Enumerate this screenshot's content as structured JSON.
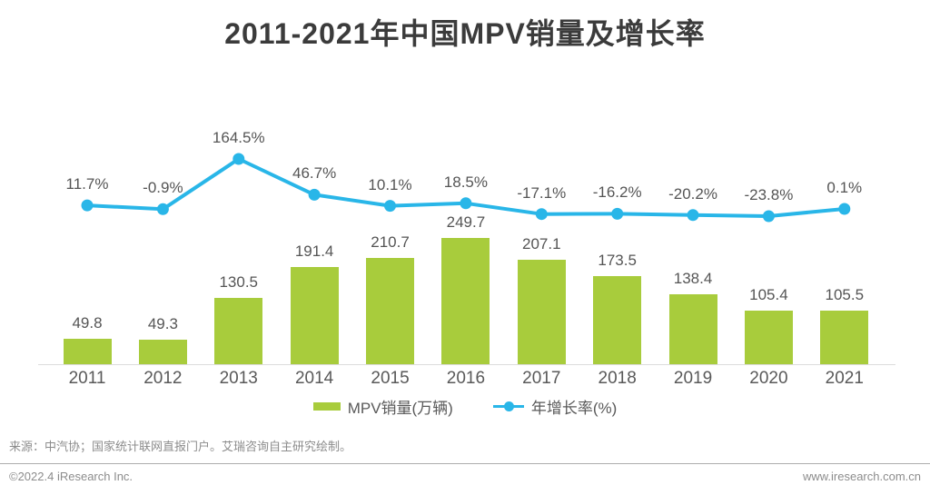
{
  "page": {
    "title": "2011-2021年中国MPV销量及增长率",
    "source_note": "来源：中汽协；国家统计联网直报门户。艾瑞咨询自主研究绘制。",
    "footer_left": "©2022.4 iResearch Inc.",
    "footer_right": "www.iresearch.com.cn"
  },
  "colors": {
    "bar": "#a8cc3c",
    "line": "#29b6e8",
    "title_text": "#3b3b3b",
    "label_text": "#595959",
    "muted_text": "#8c8c8c",
    "axis_line": "#dcdcdc"
  },
  "chart_data": {
    "type": "bar+line combo",
    "title": "2011-2021年中国MPV销量及增长率",
    "categories": [
      "2011",
      "2012",
      "2013",
      "2014",
      "2015",
      "2016",
      "2017",
      "2018",
      "2019",
      "2020",
      "2021"
    ],
    "series": [
      {
        "name": "MPV销量(万辆)",
        "type": "bar",
        "values": [
          49.8,
          49.3,
          130.5,
          191.4,
          210.7,
          249.7,
          207.1,
          173.5,
          138.4,
          105.4,
          105.5
        ],
        "labels": [
          "49.8",
          "49.3",
          "130.5",
          "191.4",
          "210.7",
          "249.7",
          "207.1",
          "173.5",
          "138.4",
          "105.4",
          "105.5"
        ]
      },
      {
        "name": "年增长率(%)",
        "type": "line",
        "values": [
          11.7,
          -0.9,
          164.5,
          46.7,
          10.1,
          18.5,
          -17.1,
          -16.2,
          -20.2,
          -23.8,
          0.1
        ],
        "labels": [
          "11.7%",
          "-0.9%",
          "164.5%",
          "46.7%",
          "10.1%",
          "18.5%",
          "-17.1%",
          "-16.2%",
          "-20.2%",
          "-23.8%",
          "0.1%"
        ]
      }
    ],
    "xlabel": "",
    "ylabel": "",
    "grid": false,
    "legend_position": "bottom"
  }
}
